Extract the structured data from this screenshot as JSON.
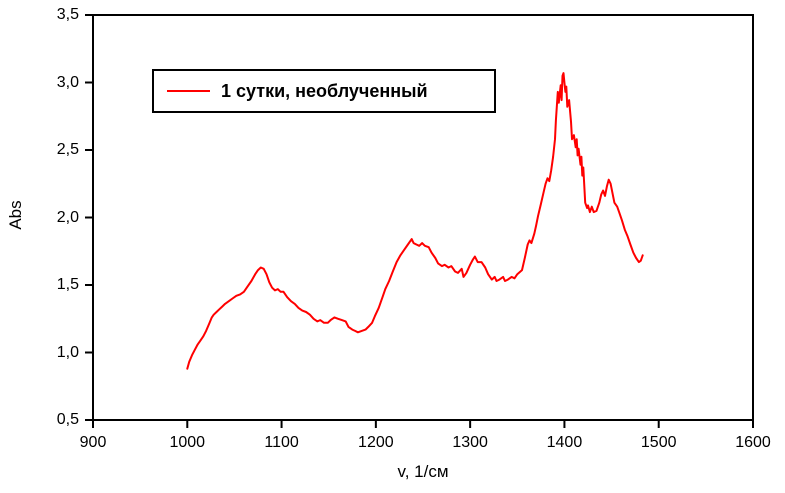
{
  "chart_data": {
    "type": "line",
    "title": "",
    "xlabel": "v, 1/см",
    "ylabel": "Abs",
    "xlim": [
      900,
      1600
    ],
    "ylim": [
      0.5,
      3.5
    ],
    "grid": false,
    "x_ticks": {
      "values": [
        900,
        1000,
        1100,
        1200,
        1300,
        1400,
        1500,
        1600
      ],
      "labels": [
        "900",
        "1000",
        "1100",
        "1200",
        "1300",
        "1400",
        "1500",
        "1600"
      ]
    },
    "y_ticks": {
      "values": [
        0.5,
        1.0,
        1.5,
        2.0,
        2.5,
        3.0,
        3.5
      ],
      "labels": [
        "0,5",
        "1,0",
        "1,5",
        "2,0",
        "2,5",
        "3,0",
        "3,5"
      ]
    },
    "legend": {
      "position": "top-left",
      "entries": [
        {
          "label": "1 сутки, необлученный",
          "color": "#ff0000"
        }
      ]
    },
    "series": [
      {
        "name": "1 сутки, необлученный",
        "color": "#ff0000",
        "points": [
          [
            1000,
            0.88
          ],
          [
            1002,
            0.93
          ],
          [
            1005,
            0.98
          ],
          [
            1008,
            1.02
          ],
          [
            1011,
            1.06
          ],
          [
            1014,
            1.09
          ],
          [
            1017,
            1.12
          ],
          [
            1020,
            1.16
          ],
          [
            1023,
            1.21
          ],
          [
            1026,
            1.26
          ],
          [
            1028,
            1.28
          ],
          [
            1031,
            1.3
          ],
          [
            1034,
            1.32
          ],
          [
            1037,
            1.34
          ],
          [
            1040,
            1.36
          ],
          [
            1044,
            1.38
          ],
          [
            1048,
            1.4
          ],
          [
            1052,
            1.42
          ],
          [
            1056,
            1.43
          ],
          [
            1060,
            1.45
          ],
          [
            1064,
            1.49
          ],
          [
            1068,
            1.53
          ],
          [
            1072,
            1.58
          ],
          [
            1075,
            1.61
          ],
          [
            1078,
            1.63
          ],
          [
            1081,
            1.62
          ],
          [
            1084,
            1.58
          ],
          [
            1087,
            1.52
          ],
          [
            1090,
            1.48
          ],
          [
            1093,
            1.46
          ],
          [
            1096,
            1.47
          ],
          [
            1099,
            1.45
          ],
          [
            1102,
            1.45
          ],
          [
            1106,
            1.41
          ],
          [
            1110,
            1.38
          ],
          [
            1114,
            1.36
          ],
          [
            1118,
            1.33
          ],
          [
            1122,
            1.31
          ],
          [
            1126,
            1.3
          ],
          [
            1130,
            1.28
          ],
          [
            1134,
            1.25
          ],
          [
            1138,
            1.23
          ],
          [
            1141,
            1.24
          ],
          [
            1145,
            1.22
          ],
          [
            1149,
            1.22
          ],
          [
            1152,
            1.24
          ],
          [
            1156,
            1.26
          ],
          [
            1160,
            1.25
          ],
          [
            1164,
            1.24
          ],
          [
            1168,
            1.23
          ],
          [
            1171,
            1.19
          ],
          [
            1175,
            1.17
          ],
          [
            1178,
            1.16
          ],
          [
            1181,
            1.15
          ],
          [
            1185,
            1.16
          ],
          [
            1189,
            1.17
          ],
          [
            1192,
            1.19
          ],
          [
            1196,
            1.22
          ],
          [
            1199,
            1.27
          ],
          [
            1203,
            1.33
          ],
          [
            1207,
            1.41
          ],
          [
            1210,
            1.47
          ],
          [
            1214,
            1.53
          ],
          [
            1218,
            1.6
          ],
          [
            1222,
            1.67
          ],
          [
            1226,
            1.72
          ],
          [
            1230,
            1.76
          ],
          [
            1234,
            1.8
          ],
          [
            1238,
            1.84
          ],
          [
            1240,
            1.81
          ],
          [
            1243,
            1.8
          ],
          [
            1246,
            1.79
          ],
          [
            1249,
            1.81
          ],
          [
            1252,
            1.79
          ],
          [
            1256,
            1.78
          ],
          [
            1259,
            1.74
          ],
          [
            1263,
            1.7
          ],
          [
            1266,
            1.66
          ],
          [
            1270,
            1.64
          ],
          [
            1273,
            1.65
          ],
          [
            1277,
            1.63
          ],
          [
            1280,
            1.64
          ],
          [
            1284,
            1.6
          ],
          [
            1287,
            1.59
          ],
          [
            1291,
            1.62
          ],
          [
            1293,
            1.56
          ],
          [
            1296,
            1.59
          ],
          [
            1300,
            1.65
          ],
          [
            1303,
            1.69
          ],
          [
            1305,
            1.71
          ],
          [
            1308,
            1.67
          ],
          [
            1312,
            1.67
          ],
          [
            1316,
            1.63
          ],
          [
            1319,
            1.58
          ],
          [
            1323,
            1.54
          ],
          [
            1326,
            1.56
          ],
          [
            1328,
            1.53
          ],
          [
            1331,
            1.54
          ],
          [
            1335,
            1.56
          ],
          [
            1337,
            1.53
          ],
          [
            1340,
            1.54
          ],
          [
            1344,
            1.56
          ],
          [
            1347,
            1.55
          ],
          [
            1350,
            1.58
          ],
          [
            1355,
            1.61
          ],
          [
            1358,
            1.7
          ],
          [
            1361,
            1.8
          ],
          [
            1363,
            1.83
          ],
          [
            1365,
            1.81
          ],
          [
            1368,
            1.88
          ],
          [
            1370,
            1.94
          ],
          [
            1372,
            2.01
          ],
          [
            1375,
            2.1
          ],
          [
            1378,
            2.19
          ],
          [
            1380,
            2.25
          ],
          [
            1382,
            2.29
          ],
          [
            1384,
            2.27
          ],
          [
            1386,
            2.35
          ],
          [
            1388,
            2.45
          ],
          [
            1390,
            2.58
          ],
          [
            1391,
            2.72
          ],
          [
            1393,
            2.93
          ],
          [
            1394,
            2.85
          ],
          [
            1396,
            2.98
          ],
          [
            1397,
            2.87
          ],
          [
            1398,
            3.05
          ],
          [
            1399,
            3.07
          ],
          [
            1400,
            3.0
          ],
          [
            1401,
            2.93
          ],
          [
            1402,
            2.97
          ],
          [
            1403,
            2.82
          ],
          [
            1405,
            2.87
          ],
          [
            1407,
            2.71
          ],
          [
            1408,
            2.58
          ],
          [
            1410,
            2.61
          ],
          [
            1412,
            2.52
          ],
          [
            1413,
            2.58
          ],
          [
            1414,
            2.46
          ],
          [
            1415,
            2.51
          ],
          [
            1417,
            2.39
          ],
          [
            1418,
            2.45
          ],
          [
            1419,
            2.31
          ],
          [
            1420,
            2.37
          ],
          [
            1422,
            2.11
          ],
          [
            1424,
            2.07
          ],
          [
            1425,
            2.09
          ],
          [
            1427,
            2.04
          ],
          [
            1429,
            2.08
          ],
          [
            1431,
            2.04
          ],
          [
            1434,
            2.05
          ],
          [
            1437,
            2.11
          ],
          [
            1439,
            2.17
          ],
          [
            1441,
            2.2
          ],
          [
            1443,
            2.16
          ],
          [
            1445,
            2.23
          ],
          [
            1447,
            2.28
          ],
          [
            1449,
            2.25
          ],
          [
            1451,
            2.18
          ],
          [
            1453,
            2.11
          ],
          [
            1456,
            2.08
          ],
          [
            1458,
            2.04
          ],
          [
            1461,
            1.98
          ],
          [
            1464,
            1.91
          ],
          [
            1467,
            1.86
          ],
          [
            1470,
            1.8
          ],
          [
            1473,
            1.74
          ],
          [
            1476,
            1.7
          ],
          [
            1479,
            1.67
          ],
          [
            1481,
            1.68
          ],
          [
            1483,
            1.72
          ]
        ]
      }
    ]
  }
}
